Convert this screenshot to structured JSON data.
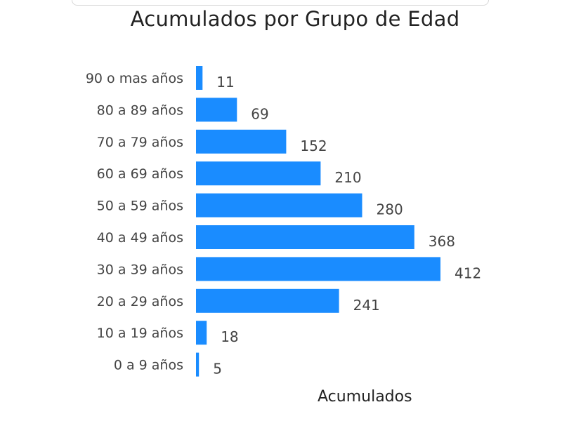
{
  "colors": {
    "bar": "#1a8cff",
    "label": "#444444",
    "title": "#222222"
  },
  "chart_data": {
    "type": "bar",
    "orientation": "horizontal",
    "title": "Acumulados por Grupo de Edad",
    "xlabel": "Acumulados",
    "ylabel": "",
    "categories": [
      "90 o mas años",
      "80 a 89 años",
      "70 a 79 años",
      "60 a 69 años",
      "50 a 59 años",
      "40 a 49 años",
      "30 a 39 años",
      "20 a 29 años",
      "10 a 19 años",
      "0 a 9 años"
    ],
    "values": [
      11,
      69,
      152,
      210,
      280,
      368,
      412,
      241,
      18,
      5
    ],
    "data_labels": [
      "11",
      "69",
      "152",
      "210",
      "280",
      "368",
      "412",
      "241",
      "18",
      "5"
    ],
    "xlim": [
      0,
      412
    ],
    "grid": false,
    "legend": "none"
  }
}
